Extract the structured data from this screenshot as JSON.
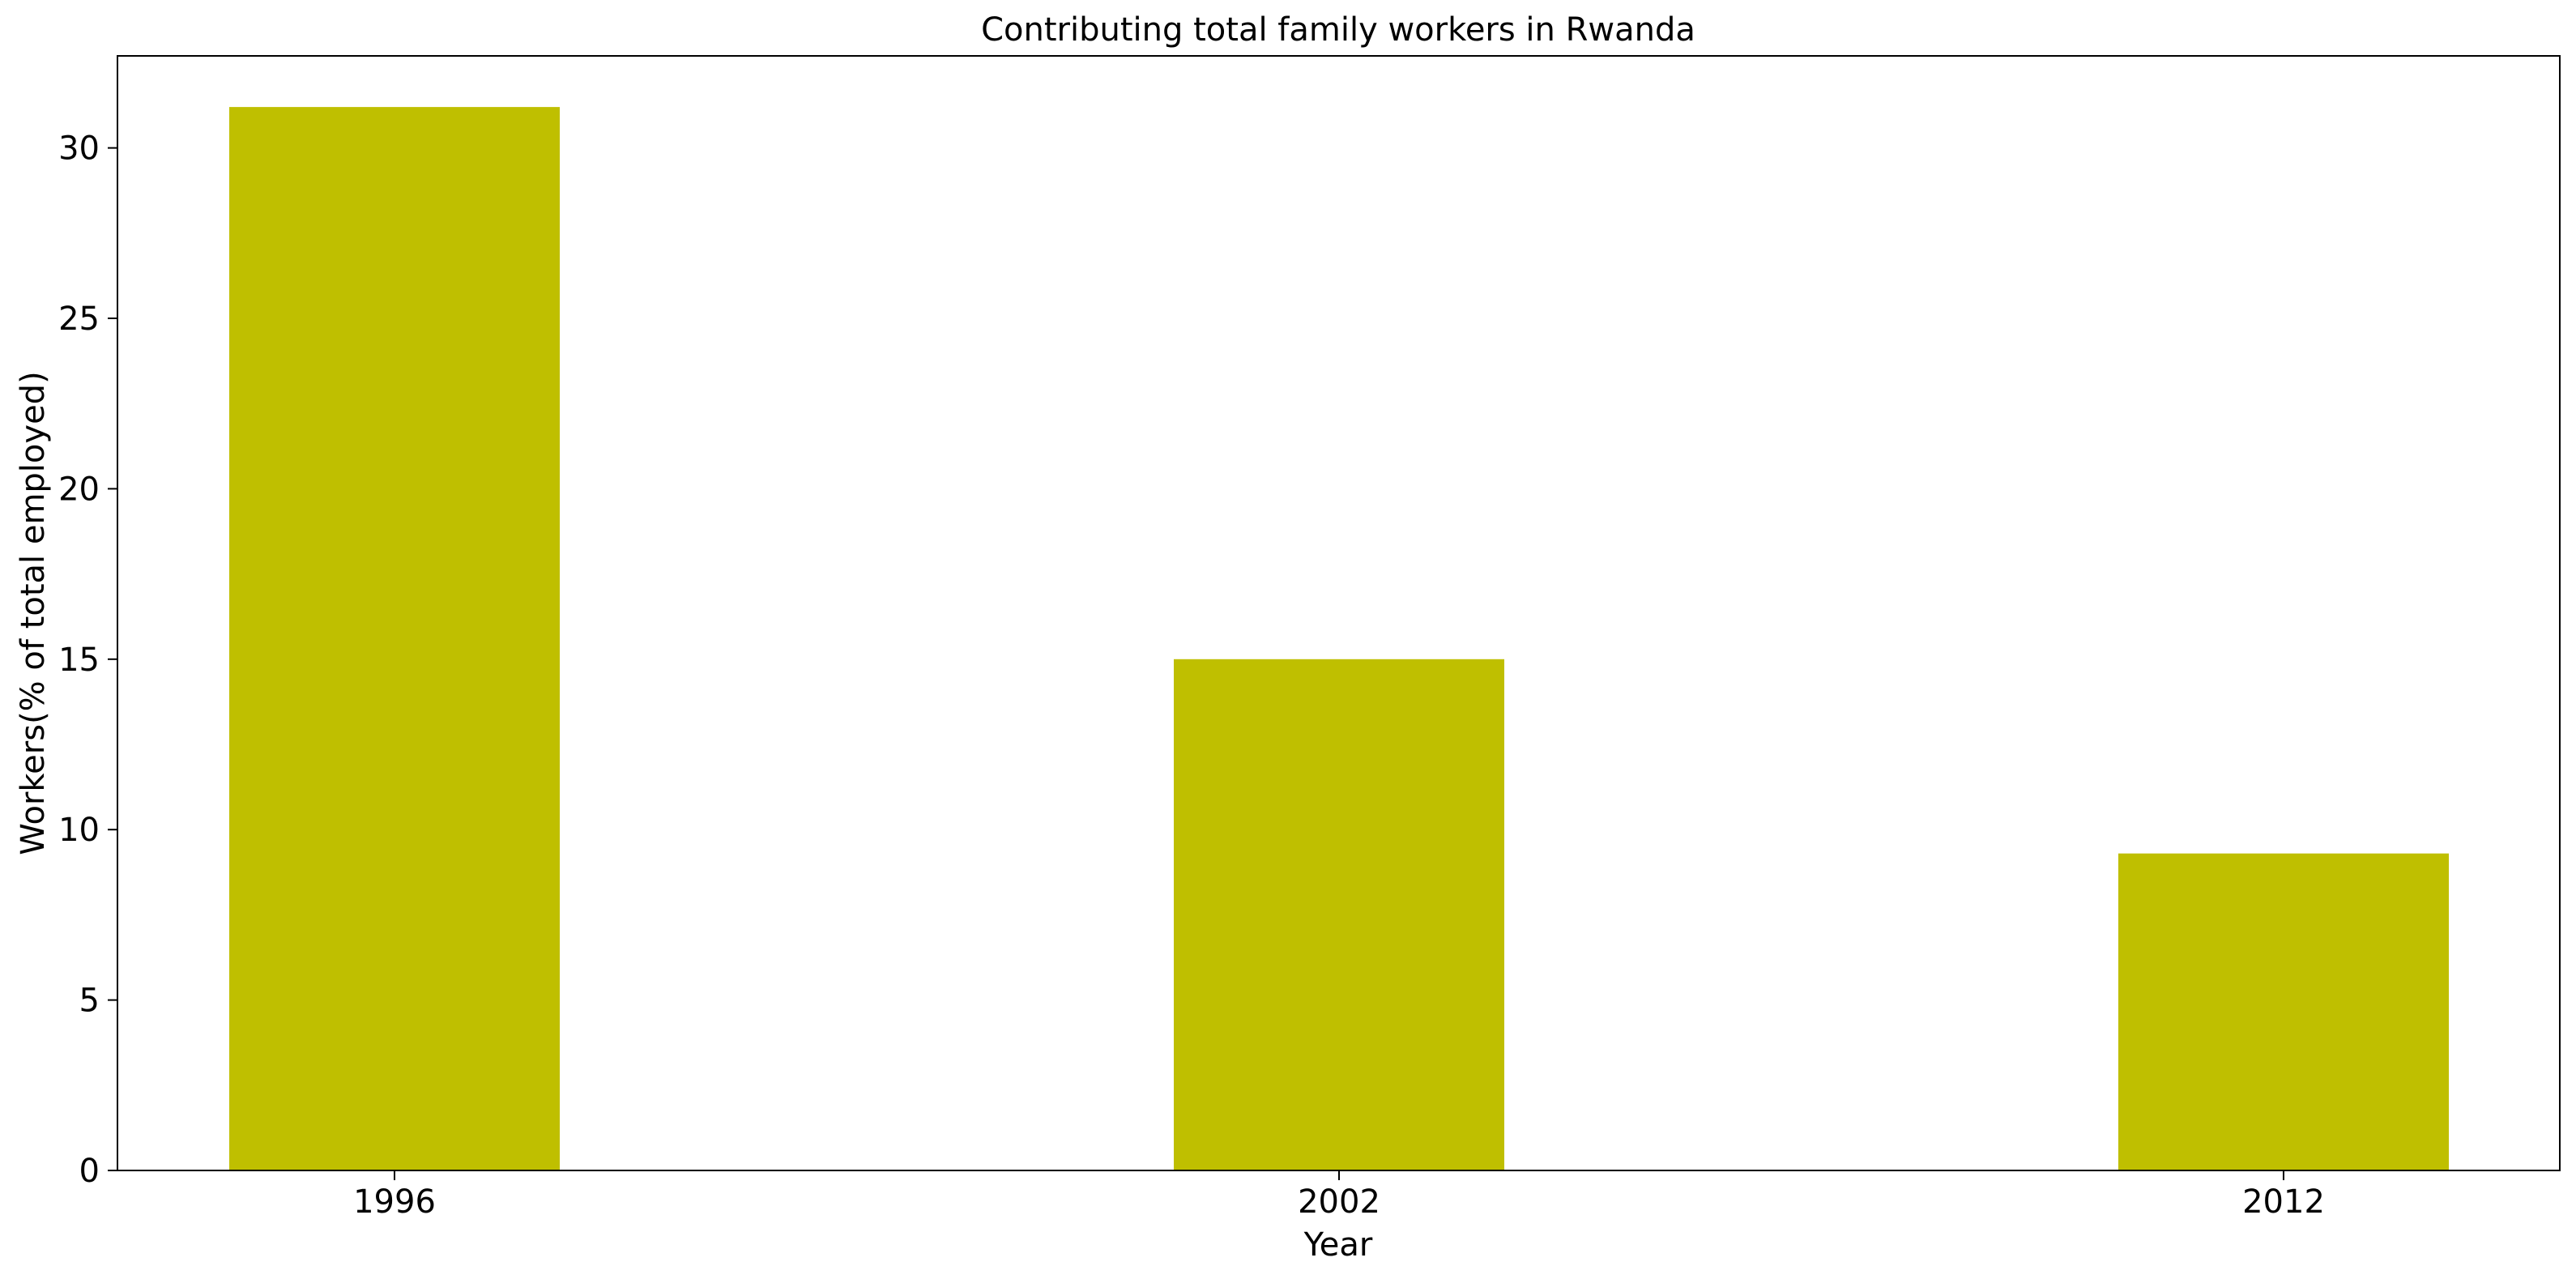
{
  "chart_data": {
    "type": "bar",
    "title": "Contributing total family workers in Rwanda",
    "xlabel": "Year",
    "ylabel": "Workers(% of total employed)",
    "categories": [
      "1996",
      "2002",
      "2012"
    ],
    "series": [
      {
        "values": [
          31.2,
          15.0,
          9.3
        ],
        "color": "#bfbf00"
      }
    ],
    "ylim": [
      0,
      32.7
    ],
    "yticks": [
      0,
      5,
      10,
      15,
      20,
      25,
      30
    ],
    "grid": false,
    "legend": "none"
  }
}
